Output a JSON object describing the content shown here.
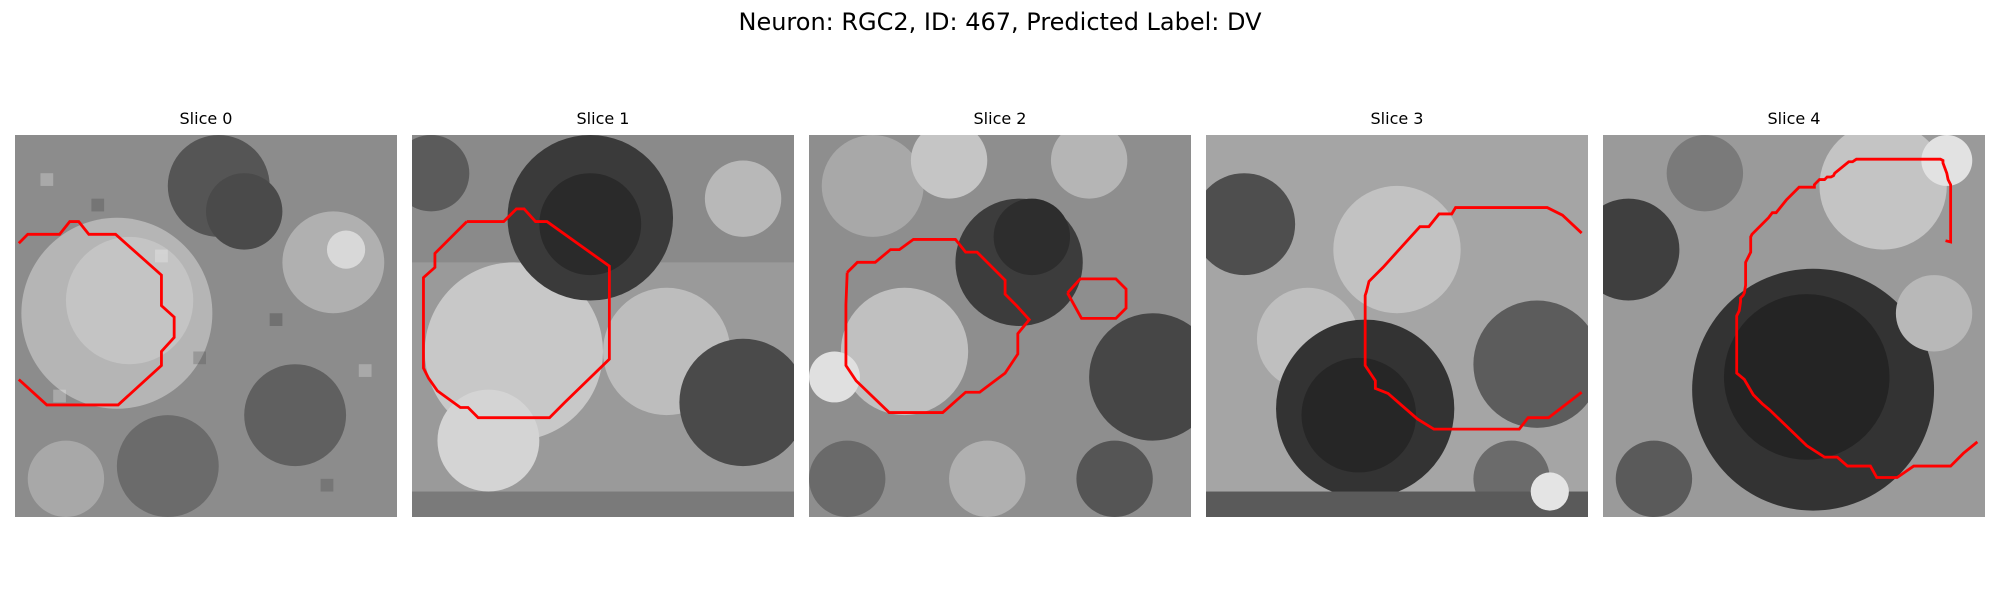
{
  "figure": {
    "title": "Neuron: RGC2, ID: 467, Predicted Label: DV"
  },
  "contour_color": "#ff0000",
  "slices": [
    {
      "title": "Slice 0"
    },
    {
      "title": "Slice 1"
    },
    {
      "title": "Slice 2"
    },
    {
      "title": "Slice 3"
    },
    {
      "title": "Slice 4"
    }
  ]
}
